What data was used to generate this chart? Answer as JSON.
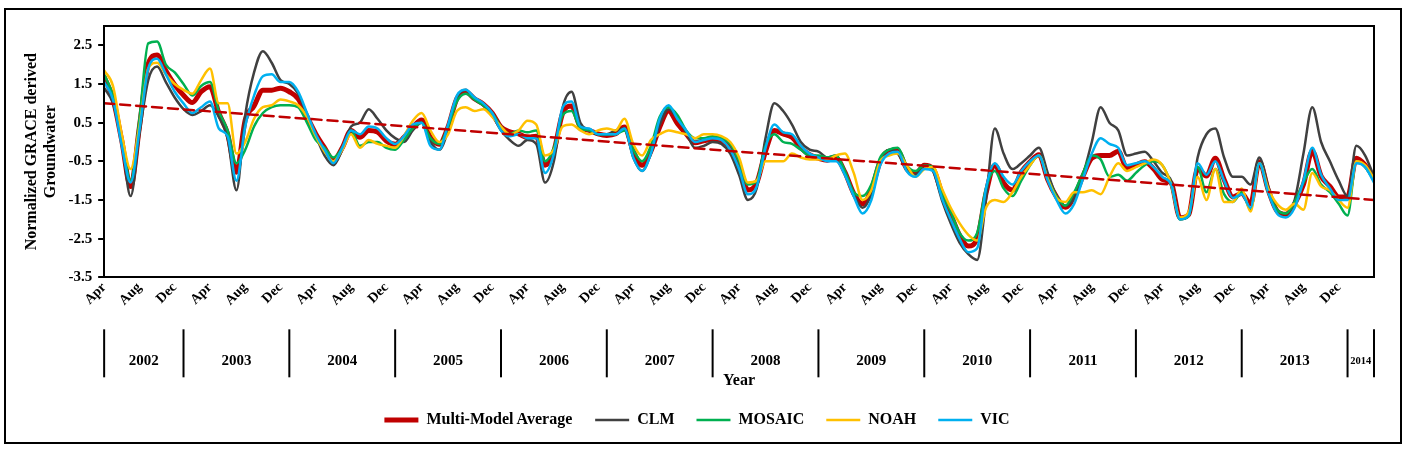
{
  "chart_data": {
    "type": "line",
    "xlabel": "Year",
    "ylabel": "Normalized GRACE derived Groundwater",
    "legend": "bottom",
    "annotations": [
      "2002",
      "2003",
      "2004",
      "2005",
      "2006",
      "2007",
      "2008",
      "2009",
      "2010",
      "2011",
      "2012",
      "2013",
      "2014"
    ],
    "marker": "none",
    "line_style": "solid",
    "xlim": [
      "2002-04",
      "2014-04"
    ],
    "ylim": [
      -3.5,
      3.0
    ],
    "yticks": [
      2.5,
      1.5,
      0.5,
      -0.5,
      -1.5,
      -2.5,
      -3.5
    ],
    "xticks": [
      {
        "value": "2002-04",
        "label": "Apr"
      },
      {
        "value": "2002-08",
        "label": "Aug"
      },
      {
        "value": "2002-12",
        "label": "Dec"
      },
      {
        "value": "2003-04",
        "label": "Apr"
      },
      {
        "value": "2003-08",
        "label": "Aug"
      },
      {
        "value": "2003-12",
        "label": "Dec"
      },
      {
        "value": "2004-04",
        "label": "Apr"
      },
      {
        "value": "2004-08",
        "label": "Aug"
      },
      {
        "value": "2004-12",
        "label": "Dec"
      },
      {
        "value": "2005-04",
        "label": "Apr"
      },
      {
        "value": "2005-08",
        "label": "Aug"
      },
      {
        "value": "2005-12",
        "label": "Dec"
      },
      {
        "value": "2006-04",
        "label": "Apr"
      },
      {
        "value": "2006-08",
        "label": "Aug"
      },
      {
        "value": "2006-12",
        "label": "Dec"
      },
      {
        "value": "2007-04",
        "label": "Apr"
      },
      {
        "value": "2007-08",
        "label": "Aug"
      },
      {
        "value": "2007-12",
        "label": "Dec"
      },
      {
        "value": "2008-04",
        "label": "Apr"
      },
      {
        "value": "2008-08",
        "label": "Aug"
      },
      {
        "value": "2008-12",
        "label": "Dec"
      },
      {
        "value": "2009-04",
        "label": "Apr"
      },
      {
        "value": "2009-08",
        "label": "Aug"
      },
      {
        "value": "2009-12",
        "label": "Dec"
      },
      {
        "value": "2010-04",
        "label": "Apr"
      },
      {
        "value": "2010-08",
        "label": "Aug"
      },
      {
        "value": "2010-12",
        "label": "Dec"
      },
      {
        "value": "2011-04",
        "label": "Apr"
      },
      {
        "value": "2011-08",
        "label": "Aug"
      },
      {
        "value": "2011-12",
        "label": "Dec"
      },
      {
        "value": "2012-04",
        "label": "Apr"
      },
      {
        "value": "2012-08",
        "label": "Aug"
      },
      {
        "value": "2012-12",
        "label": "Dec"
      },
      {
        "value": "2013-04",
        "label": "Apr"
      },
      {
        "value": "2013-08",
        "label": "Aug"
      },
      {
        "value": "2013-12",
        "label": "Dec"
      }
    ],
    "x": [
      "2002-04",
      "2002-05",
      "2002-06",
      "2002-07",
      "2002-08",
      "2002-09",
      "2002-10",
      "2002-11",
      "2002-12",
      "2003-01",
      "2003-02",
      "2003-03",
      "2003-04",
      "2003-05",
      "2003-06",
      "2003-07",
      "2003-08",
      "2003-09",
      "2003-10",
      "2003-11",
      "2003-12",
      "2004-01",
      "2004-02",
      "2004-03",
      "2004-04",
      "2004-05",
      "2004-06",
      "2004-07",
      "2004-08",
      "2004-09",
      "2004-10",
      "2004-11",
      "2004-12",
      "2005-01",
      "2005-02",
      "2005-03",
      "2005-04",
      "2005-05",
      "2005-06",
      "2005-07",
      "2005-08",
      "2005-09",
      "2005-10",
      "2005-11",
      "2005-12",
      "2006-01",
      "2006-02",
      "2006-03",
      "2006-04",
      "2006-05",
      "2006-06",
      "2006-07",
      "2006-08",
      "2006-09",
      "2006-10",
      "2006-11",
      "2006-12",
      "2007-01",
      "2007-02",
      "2007-03",
      "2007-04",
      "2007-05",
      "2007-06",
      "2007-07",
      "2007-08",
      "2007-09",
      "2007-10",
      "2007-11",
      "2007-12",
      "2008-01",
      "2008-02",
      "2008-03",
      "2008-04",
      "2008-05",
      "2008-06",
      "2008-07",
      "2008-08",
      "2008-09",
      "2008-10",
      "2008-11",
      "2008-12",
      "2009-01",
      "2009-02",
      "2009-03",
      "2009-04",
      "2009-05",
      "2009-06",
      "2009-07",
      "2009-08",
      "2009-09",
      "2009-10",
      "2009-11",
      "2009-12",
      "2010-01",
      "2010-02",
      "2010-03",
      "2010-04",
      "2010-05",
      "2010-06",
      "2010-07",
      "2010-08",
      "2010-09",
      "2010-10",
      "2010-11",
      "2010-12",
      "2011-01",
      "2011-02",
      "2011-03",
      "2011-04",
      "2011-05",
      "2011-06",
      "2011-07",
      "2011-08",
      "2011-09",
      "2011-10",
      "2011-11",
      "2011-12",
      "2012-01",
      "2012-02",
      "2012-03",
      "2012-04",
      "2012-05",
      "2012-06",
      "2012-07",
      "2012-08",
      "2012-09",
      "2012-10",
      "2012-11",
      "2012-12",
      "2013-01",
      "2013-02",
      "2013-03",
      "2013-04",
      "2013-05",
      "2013-06",
      "2013-07",
      "2013-08",
      "2013-09",
      "2013-10",
      "2013-11",
      "2013-12",
      "2014-01",
      "2014-02",
      "2014-03",
      "2014-04"
    ],
    "series": [
      {
        "name": "Multi-Model Average",
        "color": "#c00000",
        "values": [
          1.68,
          1.12,
          0.03,
          -1.15,
          0.39,
          2.02,
          2.25,
          1.84,
          1.48,
          1.21,
          1.02,
          1.3,
          1.43,
          0.75,
          0.21,
          -0.78,
          0.57,
          0.93,
          1.34,
          1.34,
          1.39,
          1.3,
          1.12,
          0.66,
          0.21,
          -0.15,
          -0.47,
          -0.15,
          0.3,
          0.12,
          0.3,
          0.26,
          0.03,
          -0.06,
          0.12,
          0.39,
          0.57,
          0.12,
          -0.06,
          0.39,
          1.12,
          1.3,
          1.12,
          0.98,
          0.75,
          0.39,
          0.26,
          0.21,
          0.12,
          0.15,
          -0.6,
          -0.24,
          0.75,
          0.93,
          0.39,
          0.3,
          0.21,
          0.17,
          0.21,
          0.39,
          -0.24,
          -0.6,
          -0.24,
          0.39,
          0.8,
          0.48,
          0.21,
          -0.02,
          0.03,
          0.07,
          0.03,
          -0.15,
          -0.6,
          -1.24,
          -1.06,
          -0.24,
          0.3,
          0.21,
          0.12,
          -0.15,
          -0.33,
          -0.42,
          -0.47,
          -0.42,
          -0.78,
          -1.33,
          -1.6,
          -1.24,
          -0.51,
          -0.24,
          -0.24,
          -0.69,
          -0.83,
          -0.6,
          -0.69,
          -1.33,
          -1.87,
          -2.41,
          -2.69,
          -2.5,
          -1.33,
          -0.6,
          -1.06,
          -1.24,
          -0.78,
          -0.51,
          -0.33,
          -0.97,
          -1.42,
          -1.69,
          -1.42,
          -0.88,
          -0.42,
          -0.35,
          -0.35,
          -0.24,
          -0.69,
          -0.6,
          -0.51,
          -0.69,
          -0.97,
          -1.06,
          -1.96,
          -1.87,
          -0.69,
          -0.88,
          -0.42,
          -0.97,
          -1.42,
          -1.33,
          -1.6,
          -0.51,
          -1.24,
          -1.78,
          -1.87,
          -1.6,
          -1.1,
          -0.24,
          -0.88,
          -1.15,
          -1.42,
          -1.42,
          -0.42,
          -0.6,
          -0.93
        ]
      },
      {
        "name": "CLM",
        "color": "#404040",
        "values": [
          1.4,
          1.0,
          0.0,
          -1.4,
          0.2,
          1.6,
          1.95,
          1.55,
          1.15,
          0.85,
          0.7,
          0.8,
          0.95,
          0.65,
          0.1,
          -1.25,
          0.7,
          1.8,
          2.35,
          2.05,
          1.6,
          1.5,
          1.25,
          0.7,
          0.15,
          -0.35,
          -0.6,
          -0.2,
          0.4,
          0.5,
          0.85,
          0.6,
          0.3,
          0.1,
          0.0,
          0.3,
          0.5,
          0.0,
          -0.2,
          0.3,
          1.15,
          1.35,
          1.1,
          0.95,
          0.7,
          0.3,
          0.05,
          -0.1,
          0.05,
          -0.05,
          -1.05,
          -0.5,
          0.9,
          1.3,
          0.5,
          0.3,
          0.2,
          0.2,
          0.3,
          0.35,
          -0.4,
          -0.75,
          -0.3,
          0.45,
          0.85,
          0.6,
          0.25,
          -0.15,
          -0.1,
          0.0,
          -0.05,
          -0.3,
          -0.85,
          -1.5,
          -1.2,
          0.1,
          1.0,
          0.8,
          0.45,
          0.0,
          -0.2,
          -0.25,
          -0.4,
          -0.35,
          -0.8,
          -1.35,
          -1.7,
          -1.35,
          -0.5,
          -0.2,
          -0.3,
          -0.7,
          -0.85,
          -0.6,
          -0.75,
          -1.5,
          -2.1,
          -2.6,
          -2.9,
          -3.05,
          -1.5,
          0.35,
          -0.3,
          -0.7,
          -0.55,
          -0.35,
          -0.15,
          -0.8,
          -1.4,
          -1.65,
          -1.45,
          -0.85,
          0.0,
          0.9,
          0.5,
          0.3,
          -0.35,
          -0.3,
          -0.25,
          -0.5,
          -0.8,
          -1.0,
          -2.0,
          -1.9,
          -0.4,
          0.2,
          0.35,
          -0.4,
          -0.9,
          -0.9,
          -1.1,
          -0.4,
          -1.15,
          -1.75,
          -1.85,
          -1.5,
          -0.3,
          0.9,
          0.0,
          -0.5,
          -1.0,
          -1.4,
          -0.1,
          -0.35,
          -0.9
        ]
      },
      {
        "name": "MOSAIC",
        "color": "#00b050",
        "values": [
          1.75,
          1.2,
          0.1,
          -1.0,
          0.6,
          2.55,
          2.6,
          2.0,
          1.8,
          1.5,
          1.2,
          1.45,
          1.55,
          0.8,
          0.3,
          -0.55,
          -0.2,
          0.4,
          0.75,
          0.9,
          0.95,
          0.95,
          0.9,
          0.5,
          0.05,
          -0.15,
          -0.4,
          -0.15,
          0.3,
          -0.1,
          0.0,
          0.0,
          -0.15,
          -0.2,
          0.05,
          0.35,
          0.5,
          0.1,
          -0.05,
          0.4,
          1.05,
          1.25,
          1.1,
          0.95,
          0.75,
          0.4,
          0.2,
          0.3,
          0.25,
          0.3,
          -0.5,
          -0.15,
          0.7,
          0.8,
          0.35,
          0.3,
          0.2,
          0.2,
          0.2,
          0.3,
          -0.2,
          -0.5,
          -0.1,
          0.65,
          0.9,
          0.7,
          0.3,
          0.1,
          0.1,
          0.15,
          0.1,
          -0.05,
          -0.5,
          -1.1,
          -1.0,
          -0.1,
          0.2,
          0.0,
          -0.05,
          -0.2,
          -0.35,
          -0.35,
          -0.4,
          -0.35,
          -0.75,
          -1.3,
          -1.4,
          -1.1,
          -0.4,
          -0.2,
          -0.15,
          -0.6,
          -0.75,
          -0.6,
          -0.65,
          -1.3,
          -1.8,
          -2.35,
          -2.55,
          -2.35,
          -1.2,
          -0.75,
          -1.2,
          -1.4,
          -1.0,
          -0.6,
          -0.35,
          -0.95,
          -1.4,
          -1.65,
          -1.3,
          -0.8,
          -0.35,
          -0.45,
          -0.9,
          -0.85,
          -1.0,
          -0.8,
          -0.6,
          -0.5,
          -0.6,
          -1.1,
          -2.0,
          -1.9,
          -0.65,
          -1.3,
          -0.7,
          -1.35,
          -1.55,
          -1.3,
          -1.75,
          -0.55,
          -1.3,
          -1.75,
          -1.85,
          -1.55,
          -1.05,
          -0.7,
          -1.1,
          -1.3,
          -1.6,
          -1.9,
          -0.5,
          -0.65,
          -1.0
        ]
      },
      {
        "name": "NOAH",
        "color": "#ffc000",
        "values": [
          1.85,
          1.45,
          0.2,
          -0.7,
          0.4,
          1.9,
          2.05,
          1.75,
          1.5,
          1.35,
          1.25,
          1.6,
          1.9,
          1.0,
          1.0,
          -0.3,
          0.0,
          0.6,
          0.9,
          0.95,
          1.1,
          1.05,
          0.95,
          0.65,
          0.15,
          -0.25,
          -0.5,
          -0.2,
          0.2,
          -0.15,
          0.05,
          -0.05,
          -0.1,
          -0.15,
          0.15,
          0.55,
          0.75,
          0.3,
          0.0,
          0.2,
          0.8,
          0.9,
          0.8,
          0.85,
          0.65,
          0.4,
          0.2,
          0.3,
          0.55,
          0.45,
          -0.35,
          -0.2,
          0.4,
          0.45,
          0.3,
          0.2,
          0.3,
          0.35,
          0.3,
          0.6,
          -0.05,
          -0.35,
          0.05,
          0.2,
          0.3,
          0.25,
          0.2,
          0.1,
          0.2,
          0.2,
          0.15,
          0.0,
          -0.4,
          -1.05,
          -1.0,
          -0.5,
          -0.5,
          -0.5,
          -0.3,
          -0.4,
          -0.45,
          -0.45,
          -0.45,
          -0.35,
          -0.3,
          -0.8,
          -1.5,
          -1.25,
          -0.5,
          -0.35,
          -0.3,
          -0.6,
          -0.9,
          -0.7,
          -0.65,
          -1.2,
          -1.7,
          -2.1,
          -2.4,
          -2.55,
          -1.7,
          -1.5,
          -1.55,
          -1.3,
          -0.9,
          -0.6,
          -0.35,
          -0.95,
          -1.45,
          -1.55,
          -1.3,
          -1.3,
          -1.25,
          -1.35,
          -0.9,
          -0.55,
          -0.75,
          -0.65,
          -0.55,
          -0.45,
          -0.6,
          -1.1,
          -1.95,
          -1.8,
          -0.9,
          -1.5,
          -0.7,
          -1.55,
          -1.55,
          -1.2,
          -1.8,
          -0.55,
          -1.2,
          -1.6,
          -1.75,
          -1.6,
          -1.75,
          -0.8,
          -1.15,
          -1.25,
          -1.5,
          -1.7,
          -0.5,
          -0.6,
          -0.95
        ]
      },
      {
        "name": "VIC",
        "color": "#00b0f0",
        "values": [
          1.55,
          1.1,
          -0.1,
          -1.05,
          0.3,
          1.9,
          2.15,
          1.75,
          1.3,
          1.0,
          0.75,
          0.9,
          1.05,
          0.35,
          0.15,
          -1.0,
          0.4,
          1.2,
          1.7,
          1.75,
          1.55,
          1.55,
          1.3,
          0.75,
          0.2,
          -0.2,
          -0.55,
          -0.15,
          0.3,
          0.2,
          0.4,
          0.35,
          0.1,
          -0.05,
          0.15,
          0.45,
          0.5,
          -0.1,
          -0.2,
          0.45,
          1.2,
          1.35,
          1.15,
          1.0,
          0.75,
          0.3,
          0.15,
          0.2,
          0.1,
          0.1,
          -0.8,
          -0.3,
          0.9,
          1.05,
          0.4,
          0.35,
          0.2,
          0.2,
          0.2,
          0.35,
          -0.4,
          -0.75,
          -0.3,
          0.6,
          0.95,
          0.6,
          0.3,
          0.0,
          0.05,
          0.1,
          0.05,
          -0.2,
          -0.7,
          -1.35,
          -1.15,
          -0.15,
          0.45,
          0.25,
          0.2,
          -0.1,
          -0.3,
          -0.4,
          -0.5,
          -0.5,
          -0.85,
          -1.4,
          -1.85,
          -1.5,
          -0.6,
          -0.3,
          -0.25,
          -0.75,
          -0.9,
          -0.7,
          -0.75,
          -1.45,
          -2.0,
          -2.5,
          -2.85,
          -2.75,
          -1.2,
          -0.55,
          -0.9,
          -1.1,
          -0.75,
          -0.5,
          -0.35,
          -1.0,
          -1.5,
          -1.85,
          -1.6,
          -0.95,
          -0.3,
          0.1,
          -0.05,
          -0.15,
          -0.6,
          -0.55,
          -0.5,
          -0.65,
          -0.9,
          -1.1,
          -2.0,
          -1.9,
          -0.55,
          -0.85,
          -0.5,
          -1.0,
          -1.45,
          -1.35,
          -1.7,
          -0.55,
          -1.3,
          -1.85,
          -1.95,
          -1.7,
          -1.0,
          -0.15,
          -0.85,
          -1.2,
          -1.5,
          -1.5,
          -0.55,
          -0.65,
          -1.05
        ]
      },
      {
        "type": "line",
        "color": "#c00000",
        "line_style": "dashed",
        "x": [
          "2002-04",
          "2014-04"
        ],
        "values": [
          1.0,
          -1.5
        ]
      }
    ]
  }
}
